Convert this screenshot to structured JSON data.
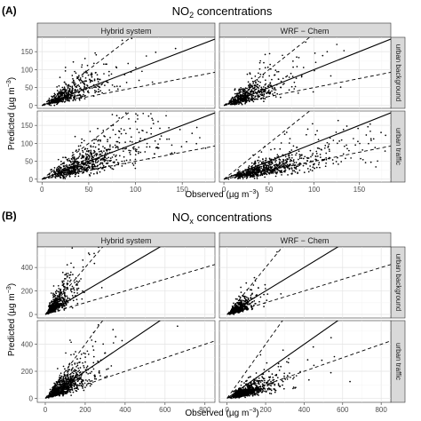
{
  "figure": {
    "panels": [
      {
        "label": "(A)",
        "title": "NO2 concentrations",
        "title_main": "NO",
        "title_sub": "2",
        "title_rest": " concentrations",
        "y_label": "Predicted",
        "x_label": "Observed",
        "unit_text": "(µg m",
        "unit_exp": "−3",
        "unit_close": ")",
        "col_strips": [
          "Hybrid system",
          "WRF − Chem"
        ],
        "row_strips": [
          "urban background",
          "urban traffic"
        ],
        "x_ticks": [
          "0",
          "50",
          "100",
          "150"
        ],
        "y_ticks": [
          "0",
          "50",
          "100",
          "150"
        ]
      },
      {
        "label": "(B)",
        "title": "NOx concentrations",
        "title_main": "NO",
        "title_sub": "x",
        "title_rest": " concentrations",
        "y_label": "Predicted",
        "x_label": "Observed",
        "unit_text": "(µg m",
        "unit_exp": "−3",
        "unit_close": ")",
        "col_strips": [
          "Hybrid system",
          "WRF − Chem"
        ],
        "row_strips": [
          "urban background",
          "urban traffic"
        ],
        "x_ticks": [
          "0",
          "200",
          "400",
          "600",
          "800"
        ],
        "y_ticks": [
          "0",
          "200",
          "400"
        ]
      }
    ]
  },
  "chart_data": [
    {
      "type": "scatter",
      "title": "NO2 concentrations",
      "xlabel": "Observed (µg m−3)",
      "ylabel": "Predicted (µg m−3)",
      "xlim": [
        -5,
        185
      ],
      "ylim": [
        -8,
        190
      ],
      "grid": true,
      "facets": {
        "columns": [
          "Hybrid system",
          "WRF − Chem"
        ],
        "rows": [
          "urban background",
          "urban traffic"
        ]
      },
      "reference_lines": [
        {
          "style": "solid",
          "slope": 1
        },
        {
          "style": "dashed",
          "slope": 2
        },
        {
          "style": "dashed",
          "slope": 0.5
        }
      ],
      "cells": [
        {
          "column": "Hybrid system",
          "row": "urban background",
          "n_points": 500,
          "x_mean": 30,
          "x_range": [
            0,
            160
          ],
          "ratio_mean": 1.15
        },
        {
          "column": "WRF − Chem",
          "row": "urban background",
          "n_points": 500,
          "x_mean": 30,
          "x_range": [
            0,
            160
          ],
          "ratio_mean": 1.05
        },
        {
          "column": "Hybrid system",
          "row": "urban traffic",
          "n_points": 750,
          "x_mean": 48,
          "x_range": [
            0,
            175
          ],
          "ratio_mean": 0.95
        },
        {
          "column": "WRF − Chem",
          "row": "urban traffic",
          "n_points": 750,
          "x_mean": 55,
          "x_range": [
            0,
            180
          ],
          "ratio_mean": 0.6
        }
      ]
    },
    {
      "type": "scatter",
      "title": "NOx concentrations",
      "xlabel": "Observed (µg m−3)",
      "ylabel": "Predicted (µg m−3)",
      "xlim": [
        -40,
        850
      ],
      "ylim": [
        -30,
        575
      ],
      "grid": true,
      "facets": {
        "columns": [
          "Hybrid system",
          "WRF − Chem"
        ],
        "rows": [
          "urban background",
          "urban traffic"
        ]
      },
      "reference_lines": [
        {
          "style": "solid",
          "slope": 1
        },
        {
          "style": "dashed",
          "slope": 2
        },
        {
          "style": "dashed",
          "slope": 0.5
        }
      ],
      "cells": [
        {
          "column": "Hybrid system",
          "row": "urban background",
          "n_points": 550,
          "x_mean": 60,
          "x_range": [
            0,
            550
          ],
          "ratio_mean": 1.5
        },
        {
          "column": "WRF − Chem",
          "row": "urban background",
          "n_points": 550,
          "x_mean": 60,
          "x_range": [
            0,
            550
          ],
          "ratio_mean": 0.8
        },
        {
          "column": "Hybrid system",
          "row": "urban traffic",
          "n_points": 800,
          "x_mean": 100,
          "x_range": [
            0,
            800
          ],
          "ratio_mean": 0.9
        },
        {
          "column": "WRF − Chem",
          "row": "urban traffic",
          "n_points": 800,
          "x_mean": 110,
          "x_range": [
            0,
            800
          ],
          "ratio_mean": 0.45
        }
      ]
    }
  ]
}
